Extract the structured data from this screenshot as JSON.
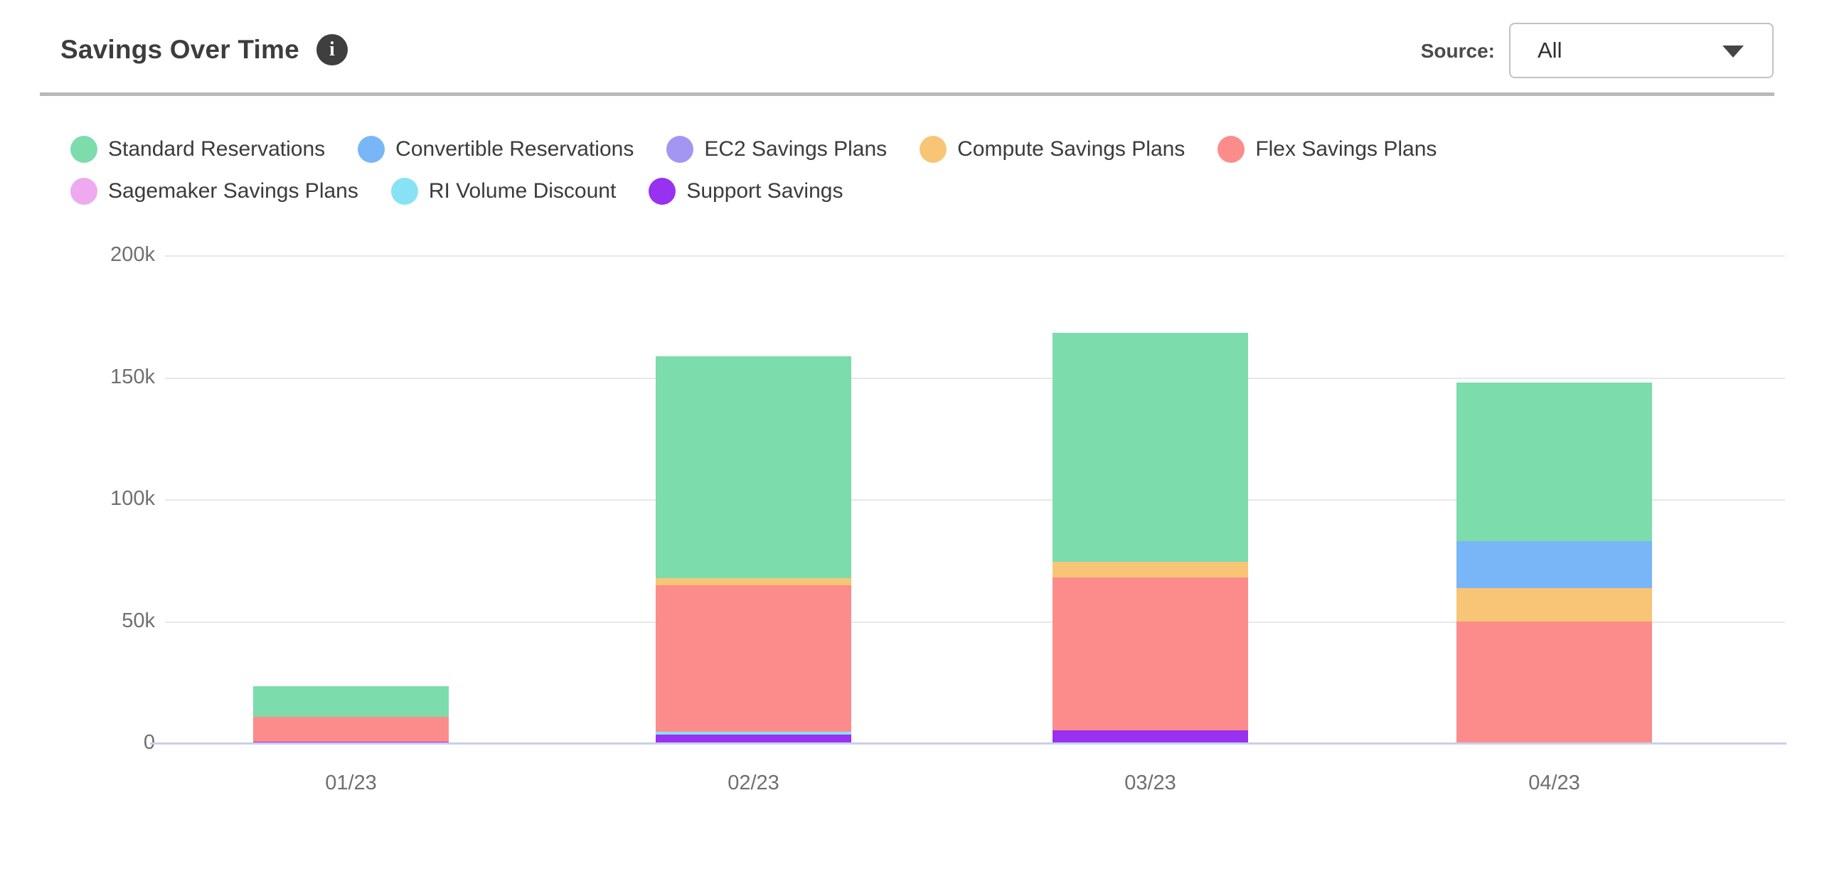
{
  "header": {
    "title": "Savings Over Time",
    "info_icon": "i",
    "source_label": "Source:",
    "source_value": "All"
  },
  "chart_data": {
    "type": "bar",
    "stacked": true,
    "title": "Savings Over Time",
    "categories": [
      "01/23",
      "02/23",
      "03/23",
      "04/23"
    ],
    "series": [
      {
        "name": "Standard Reservations",
        "color": "#7cdcac",
        "values": [
          12600,
          91100,
          94100,
          64900
        ]
      },
      {
        "name": "Convertible Reservations",
        "color": "#78b6f8",
        "values": [
          0,
          0,
          0,
          19300
        ]
      },
      {
        "name": "EC2 Savings Plans",
        "color": "#a296f2",
        "values": [
          0,
          0,
          0,
          0
        ]
      },
      {
        "name": "Compute Savings Plans",
        "color": "#f8c577",
        "values": [
          0,
          2700,
          6300,
          13700
        ]
      },
      {
        "name": "Flex Savings Plans",
        "color": "#fc8c8c",
        "values": [
          10000,
          60100,
          62700,
          50100
        ]
      },
      {
        "name": "Sagemaker Savings Plans",
        "color": "#efaaef",
        "values": [
          0,
          0,
          0,
          0
        ]
      },
      {
        "name": "RI Volume Discount",
        "color": "#88e2f5",
        "values": [
          0,
          1100,
          0,
          0
        ]
      },
      {
        "name": "Support Savings",
        "color": "#9831f0",
        "values": [
          1000,
          3900,
          5500,
          0
        ]
      }
    ],
    "stack_order_bottom_to_top": [
      "Support Savings",
      "RI Volume Discount",
      "Sagemaker Savings Plans",
      "Flex Savings Plans",
      "Compute Savings Plans",
      "EC2 Savings Plans",
      "Convertible Reservations",
      "Standard Reservations"
    ],
    "totals": [
      23600,
      158900,
      168600,
      148000
    ],
    "yticks": [
      {
        "value": 0,
        "label": "0"
      },
      {
        "value": 50000,
        "label": "50k"
      },
      {
        "value": 100000,
        "label": "100k"
      },
      {
        "value": 150000,
        "label": "150k"
      },
      {
        "value": 200000,
        "label": "200k"
      }
    ],
    "ylim": [
      0,
      200000
    ],
    "grid": true,
    "legend_position": "top"
  }
}
